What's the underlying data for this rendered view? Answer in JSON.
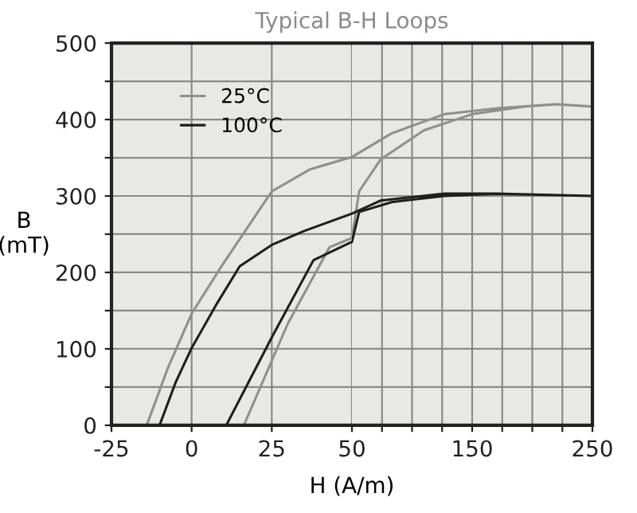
{
  "chart_data": [
    {
      "type": "line",
      "title": "Typical B-H Loops",
      "xlabel": "H (A/m)",
      "ylabel": "B\n(mT)",
      "series": [
        {
          "name": "25°C",
          "color": "#8f8f8f",
          "x": [
            50,
            37,
            25,
            9,
            0,
            -7.5,
            -14
          ],
          "values": [
            351,
            335,
            306,
            206,
            146,
            74,
            0
          ]
        },
        {
          "name": "100°C",
          "color": "#1e1e1e",
          "x": [
            50,
            35,
            25,
            15,
            8,
            0,
            -5,
            -10
          ],
          "values": [
            277,
            254,
            236,
            208,
            160,
            101,
            56,
            0
          ]
        },
        {
          "color": "#8f8f8f",
          "x": [
            16.3,
            30,
            43,
            50
          ],
          "values": [
            0,
            133,
            233,
            245
          ]
        },
        {
          "color": "#1e1e1e",
          "x": [
            10.8,
            25,
            38,
            50
          ],
          "values": [
            0,
            115,
            216,
            240
          ]
        }
      ],
      "xlim": [
        -25,
        50
      ],
      "ylim": [
        0,
        500
      ],
      "xticks": [
        -25,
        0,
        25,
        50
      ],
      "yticks": [
        0,
        {
          "value": 50,
          "label": null
        },
        100,
        {
          "value": 150,
          "label": null
        },
        200,
        {
          "value": 250,
          "label": null
        },
        300,
        {
          "value": 350,
          "label": null
        },
        400,
        {
          "value": 450,
          "label": null
        },
        500
      ],
      "grid": true,
      "legend": "top",
      "marker": "none",
      "line_style": "solid"
    },
    {
      "type": "line",
      "series": [
        {
          "color": "#8f8f8f",
          "x": [
            50,
            56,
            74,
            110,
            150,
            194,
            220,
            250,
            220,
            172,
            127,
            83,
            50
          ],
          "values": [
            245,
            306,
            348,
            386,
            407,
            417,
            420,
            417,
            420,
            415,
            407,
            382,
            351
          ]
        },
        {
          "color": "#1e1e1e",
          "x": [
            50,
            56,
            83,
            127,
            170,
            250,
            170,
            127,
            74,
            50
          ],
          "values": [
            240,
            279,
            292,
            300,
            303,
            300,
            303,
            303,
            294,
            277
          ]
        }
      ],
      "xlim": [
        50,
        250
      ],
      "ylim": [
        0,
        500
      ],
      "xticks": [
        {
          "value": 75,
          "label": null
        },
        {
          "value": 100,
          "label": null
        },
        {
          "value": 125,
          "label": null
        },
        150,
        {
          "value": 175,
          "label": null
        },
        {
          "value": 200,
          "label": null
        },
        {
          "value": 225,
          "label": null
        },
        250
      ],
      "yticks": [
        {
          "value": 50,
          "label": null
        },
        {
          "value": 100,
          "label": null
        },
        {
          "value": 150,
          "label": null
        },
        {
          "value": 200,
          "label": null
        },
        {
          "value": 250,
          "label": null
        },
        {
          "value": 300,
          "label": null
        },
        {
          "value": 350,
          "label": null
        },
        {
          "value": 400,
          "label": null
        },
        {
          "value": 450,
          "label": null
        }
      ],
      "tick_labels": "x",
      "grid": true,
      "marker": "none",
      "line_style": "solid"
    }
  ]
}
